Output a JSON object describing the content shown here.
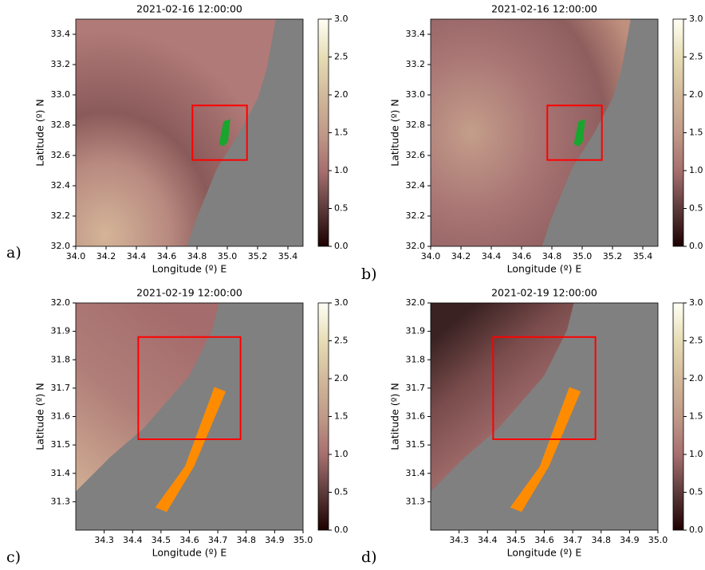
{
  "chart_data": [
    {
      "type": "heatmap",
      "title": "2021-02-16 12:00:00",
      "xlabel": "Longitude (º) E",
      "ylabel": "Latitude (º) N",
      "panel_label": "a)",
      "xlim": [
        34.0,
        35.5
      ],
      "ylim": [
        32.0,
        33.5
      ],
      "xticks": [
        {
          "value": 34.0,
          "label": "34.0"
        },
        34.2,
        34.4,
        34.6,
        34.8,
        {
          "value": 35.0,
          "label": "35.0"
        },
        35.2,
        35.4
      ],
      "yticks": [
        {
          "value": 32.0,
          "label": "32.0"
        },
        32.2,
        32.4,
        32.6,
        32.8,
        {
          "value": 33.0,
          "label": "33.0"
        },
        33.2,
        33.4
      ],
      "clim": [
        0,
        3
      ],
      "cticks": [
        {
          "value": 0,
          "label": "0.0"
        },
        0.5,
        {
          "value": 1,
          "label": "1.0"
        },
        1.5,
        {
          "value": 2,
          "label": "2.0"
        },
        2.5,
        {
          "value": 3,
          "label": "3.0"
        }
      ],
      "box": {
        "xlim": [
          34.77,
          35.13
        ],
        "ylim": [
          32.57,
          32.93
        ],
        "color": "#ff0000"
      }
    },
    {
      "type": "heatmap",
      "title": "2021-02-16 12:00:00",
      "xlabel": "Longitude (º) E",
      "ylabel": "Latitude (º) N",
      "panel_label": "b)",
      "xlim": [
        34.0,
        35.5
      ],
      "ylim": [
        32.0,
        33.5
      ],
      "xticks": [
        {
          "value": 34.0,
          "label": "34.0"
        },
        34.2,
        34.4,
        34.6,
        34.8,
        {
          "value": 35.0,
          "label": "35.0"
        },
        35.2,
        35.4
      ],
      "yticks": [
        {
          "value": 32.0,
          "label": "32.0"
        },
        32.2,
        32.4,
        32.6,
        32.8,
        {
          "value": 33.0,
          "label": "33.0"
        },
        33.2,
        33.4
      ],
      "clim": [
        0,
        3
      ],
      "cticks": [
        {
          "value": 0,
          "label": "0.0"
        },
        0.5,
        {
          "value": 1,
          "label": "1.0"
        },
        1.5,
        {
          "value": 2,
          "label": "2.0"
        },
        2.5,
        {
          "value": 3,
          "label": "3.0"
        }
      ],
      "box": {
        "xlim": [
          34.77,
          35.13
        ],
        "ylim": [
          32.57,
          32.93
        ],
        "color": "#ff0000"
      }
    },
    {
      "type": "heatmap",
      "title": "2021-02-19 12:00:00",
      "xlabel": "Longitude (º) E",
      "ylabel": "Latitude (º) N",
      "panel_label": "c)",
      "xlim": [
        34.2,
        35.0
      ],
      "ylim": [
        31.2,
        32.0
      ],
      "xticks": [
        34.3,
        34.4,
        34.5,
        34.6,
        34.7,
        34.8,
        34.9,
        {
          "value": 35.0,
          "label": "35.0"
        }
      ],
      "yticks": [
        31.3,
        31.4,
        31.5,
        31.6,
        31.7,
        31.8,
        31.9,
        {
          "value": 32.0,
          "label": "32.0"
        }
      ],
      "clim": [
        0,
        3
      ],
      "cticks": [
        {
          "value": 0,
          "label": "0.0"
        },
        0.5,
        {
          "value": 1,
          "label": "1.0"
        },
        1.5,
        {
          "value": 2,
          "label": "2.0"
        },
        2.5,
        {
          "value": 3,
          "label": "3.0"
        }
      ],
      "box": {
        "xlim": [
          34.42,
          34.78
        ],
        "ylim": [
          31.52,
          31.88
        ],
        "color": "#ff0000"
      }
    },
    {
      "type": "heatmap",
      "title": "2021-02-19 12:00:00",
      "xlabel": "Longitude (º) E",
      "ylabel": "Latitude (º) N",
      "panel_label": "d)",
      "xlim": [
        34.2,
        35.0
      ],
      "ylim": [
        31.2,
        32.0
      ],
      "xticks": [
        34.3,
        34.4,
        34.5,
        34.6,
        34.7,
        34.8,
        34.9,
        {
          "value": 35.0,
          "label": "35.0"
        }
      ],
      "yticks": [
        31.3,
        31.4,
        31.5,
        31.6,
        31.7,
        31.8,
        31.9,
        {
          "value": 32.0,
          "label": "32.0"
        }
      ],
      "clim": [
        0,
        3
      ],
      "cticks": [
        {
          "value": 0,
          "label": "0.0"
        },
        0.5,
        {
          "value": 1,
          "label": "1.0"
        },
        1.5,
        {
          "value": 2,
          "label": "2.0"
        },
        2.5,
        {
          "value": 3,
          "label": "3.0"
        }
      ],
      "box": {
        "xlim": [
          34.42,
          34.78
        ],
        "ylim": [
          31.52,
          31.88
        ],
        "color": "#ff0000"
      }
    }
  ]
}
